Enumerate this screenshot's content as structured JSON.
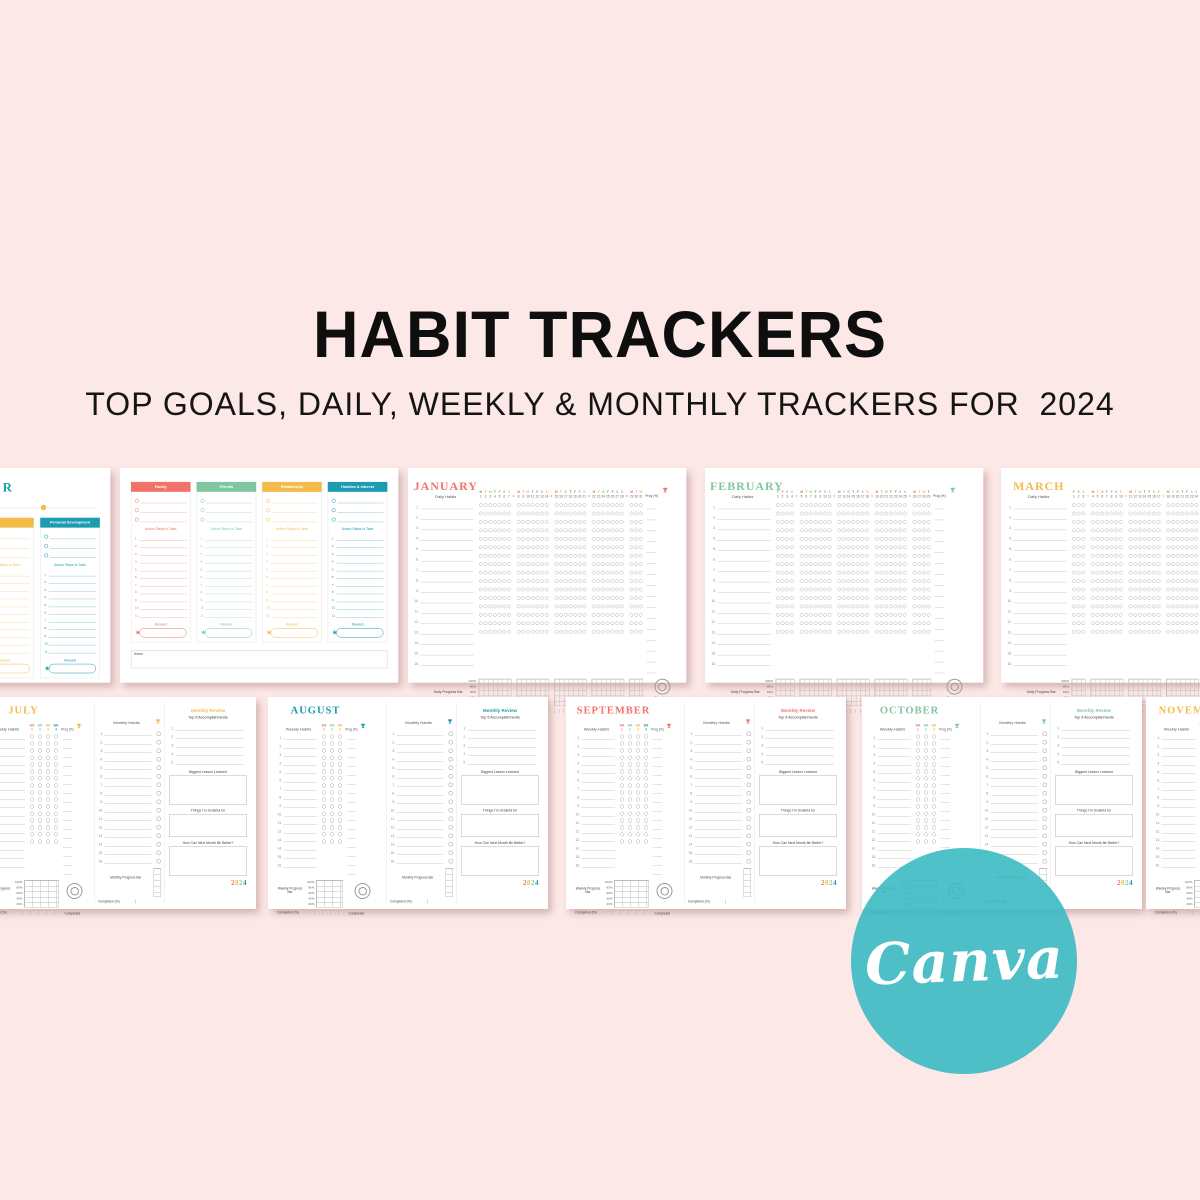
{
  "canvas": {
    "title": "HABIT TRACKERS",
    "subtitle": "TOP GOALS, DAILY, WEEKLY & MONTHLY TRACKERS FOR  2024",
    "background": "#fce9e7"
  },
  "palette": {
    "coral": "#f2736a",
    "green": "#7fc7a1",
    "yellow": "#f3bb4a",
    "teal": "#1b9cb0",
    "ink": "#0e0e0e"
  },
  "canva_badge": {
    "label": "Canva",
    "bg": "#3bbac3",
    "fg": "#ffffff"
  },
  "goals": {
    "columns": [
      {
        "label": "Family",
        "color": "coral"
      },
      {
        "label": "Friends",
        "color": "green"
      },
      {
        "label": "Relationship",
        "color": "yellow"
      },
      {
        "label": "Hobbies & Interest",
        "color": "teal"
      }
    ],
    "action_label": "Action Steps to Take",
    "reward_label": "Reward",
    "notes_label": "Notes",
    "goal_slots": 3,
    "step_count": 11,
    "partial": {
      "title_fragment": "R",
      "columns": [
        {
          "label": "",
          "color": "yellow"
        },
        {
          "label": "Personal Development",
          "color": "teal"
        }
      ]
    }
  },
  "daily": {
    "subtitle": "Daily Habits",
    "prog_label": "Prog (%)",
    "bar_label": "Daily Progress Bar",
    "completed_pct_label": "Completed (%)",
    "completed_label": "Completed",
    "axis": [
      "100%",
      "80%",
      "60%",
      "40%",
      "20%"
    ],
    "rows": 16,
    "day_letters": [
      "M",
      "T",
      "W",
      "T",
      "F",
      "S",
      "S"
    ],
    "months": [
      {
        "name": "JANUARY",
        "color": "coral",
        "first_weekday": 0,
        "groups": [
          [
            1,
            7
          ],
          [
            8,
            14
          ],
          [
            15,
            21
          ],
          [
            22,
            28
          ],
          [
            29,
            31
          ]
        ]
      },
      {
        "name": "FEBRUARY",
        "color": "green",
        "first_weekday": 3,
        "groups": [
          [
            1,
            4
          ],
          [
            5,
            11
          ],
          [
            12,
            18
          ],
          [
            19,
            25
          ],
          [
            26,
            29
          ]
        ]
      },
      {
        "name": "MARCH",
        "color": "yellow",
        "first_weekday": 4,
        "groups": [
          [
            1,
            3
          ],
          [
            4,
            10
          ],
          [
            11,
            17
          ],
          [
            18,
            24
          ],
          [
            25,
            31
          ]
        ]
      }
    ]
  },
  "weekly": {
    "weekly_label": "Weekly Habits",
    "monthly_label": "Monthly Habits",
    "prog_label": "Prog (%)",
    "review_label": "Monthly Review",
    "top5_label": "Top 5 Accomplishments",
    "lesson_label": "Biggest Lesson Learned",
    "grateful_label": "Things I'm Grateful for",
    "better_label": "How Can Next Month Be Better?",
    "weekly_bar_label": "Weekly Progress Bar",
    "monthly_bar_label": "Monthly Progress Bar",
    "completed_pct_label": "Completed (%)",
    "completed_label": "Completed",
    "axis": [
      "100%",
      "80%",
      "60%",
      "40%",
      "20%"
    ],
    "rows": 16,
    "top5_count": 5,
    "wk_prefix": "Wk",
    "wk_colors": [
      "coral",
      "green",
      "yellow",
      "teal"
    ],
    "year": {
      "digits": [
        "2",
        "0",
        "2",
        "4"
      ],
      "colors": [
        "coral",
        "yellow",
        "green",
        "teal"
      ]
    },
    "months": [
      {
        "name": "JULY",
        "color": "yellow",
        "weeks": 4
      },
      {
        "name": "AUGUST",
        "color": "teal",
        "weeks": 3
      },
      {
        "name": "SEPTEMBER",
        "color": "coral",
        "weeks": 4
      },
      {
        "name": "OCTOBER",
        "color": "green",
        "weeks": 3
      },
      {
        "name": "NOVEMBER",
        "color": "yellow",
        "weeks": 3
      }
    ]
  }
}
